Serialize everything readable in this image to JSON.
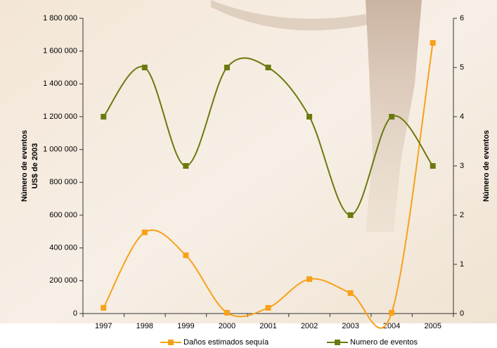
{
  "chart_data": {
    "type": "line",
    "ylabel": [
      "Número de eventos",
      "US$ de 2003"
    ],
    "y2label": "Número de eventos",
    "categories": [
      "1997",
      "1998",
      "1999",
      "2000",
      "2001",
      "2002",
      "2003",
      "2004",
      "2005"
    ],
    "series": [
      {
        "name": "Daños estimados sequía",
        "color": "#f7a11a",
        "values": [
          35000,
          495000,
          355000,
          5000,
          35000,
          210000,
          125000,
          5000,
          1650000
        ]
      },
      {
        "name": "Numero de eventos",
        "color": "#6b7a0e",
        "axis": "y2",
        "values": [
          4,
          5,
          3,
          5,
          5,
          4,
          2,
          4,
          3
        ]
      }
    ],
    "ylim": [
      0,
      1800000
    ],
    "yticks": [
      0,
      {
        "value": 200000,
        "label": "200 000"
      },
      {
        "value": 400000,
        "label": "400 000"
      },
      {
        "value": 600000,
        "label": "600 000"
      },
      {
        "value": 800000,
        "label": "800 000"
      },
      {
        "value": 1000000,
        "label": "1 000 000"
      },
      {
        "value": 1200000,
        "label": "1 200 000"
      },
      {
        "value": 1400000,
        "label": "1 400 000"
      },
      {
        "value": 1600000,
        "label": "1 600 000"
      },
      {
        "value": 1800000,
        "label": "1 800 000"
      }
    ],
    "y2lim": [
      0,
      6
    ],
    "y2ticks": [
      0,
      1,
      2,
      3,
      4,
      5,
      6
    ],
    "smooth": true,
    "legend": "bottom"
  }
}
